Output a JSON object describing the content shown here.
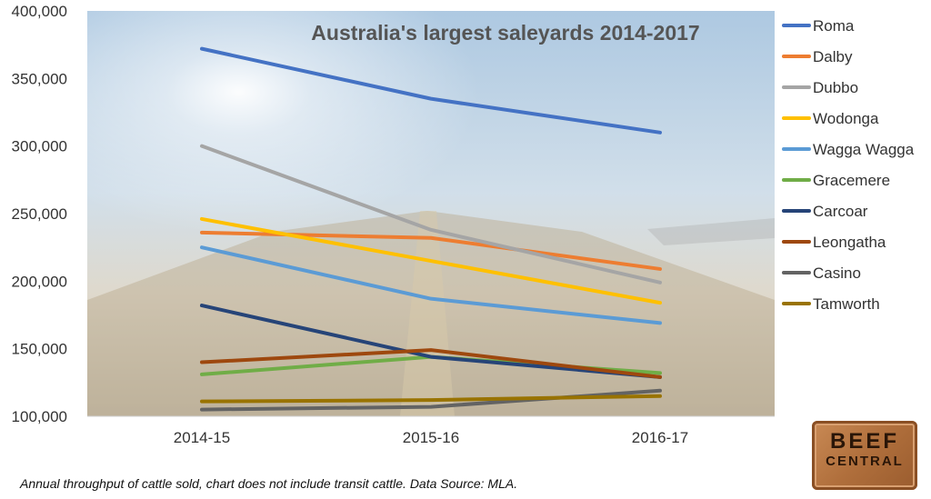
{
  "chart_data": {
    "type": "line",
    "title": "Australia's largest saleyards 2014-2017",
    "categories": [
      "2014-15",
      "2015-16",
      "2016-17"
    ],
    "ylim": [
      100000,
      400000
    ],
    "yticks": [
      "100,000",
      "150,000",
      "200,000",
      "250,000",
      "300,000",
      "350,000",
      "400,000"
    ],
    "ytick_values": [
      100000,
      150000,
      200000,
      250000,
      300000,
      350000,
      400000
    ],
    "grid": false,
    "legend_position": "right",
    "series": [
      {
        "name": "Roma",
        "color": "#4472c4",
        "values": [
          372000,
          335000,
          310000
        ]
      },
      {
        "name": "Dalby",
        "color": "#ed7d31",
        "values": [
          236000,
          232000,
          209000
        ]
      },
      {
        "name": "Dubbo",
        "color": "#a5a5a5",
        "values": [
          300000,
          238000,
          199000
        ]
      },
      {
        "name": "Wodonga",
        "color": "#ffc000",
        "values": [
          246000,
          215000,
          184000
        ]
      },
      {
        "name": "Wagga Wagga",
        "color": "#5b9bd5",
        "values": [
          225000,
          187000,
          169000
        ]
      },
      {
        "name": "Gracemere",
        "color": "#70ad47",
        "values": [
          131000,
          144000,
          132000
        ]
      },
      {
        "name": "Carcoar",
        "color": "#264478",
        "values": [
          182000,
          144000,
          129000
        ]
      },
      {
        "name": "Leongatha",
        "color": "#9e480e",
        "values": [
          140000,
          149000,
          129000
        ]
      },
      {
        "name": "Casino",
        "color": "#636363",
        "values": [
          105000,
          107000,
          119000
        ]
      },
      {
        "name": "Tamworth",
        "color": "#997300",
        "values": [
          111000,
          112000,
          115000
        ]
      }
    ]
  },
  "caption": "Annual throughput of cattle sold, chart does not include transit cattle. Data Source: MLA.",
  "logo": {
    "top": "BEEF",
    "mid": "",
    "bottom": "CENTRAL"
  }
}
